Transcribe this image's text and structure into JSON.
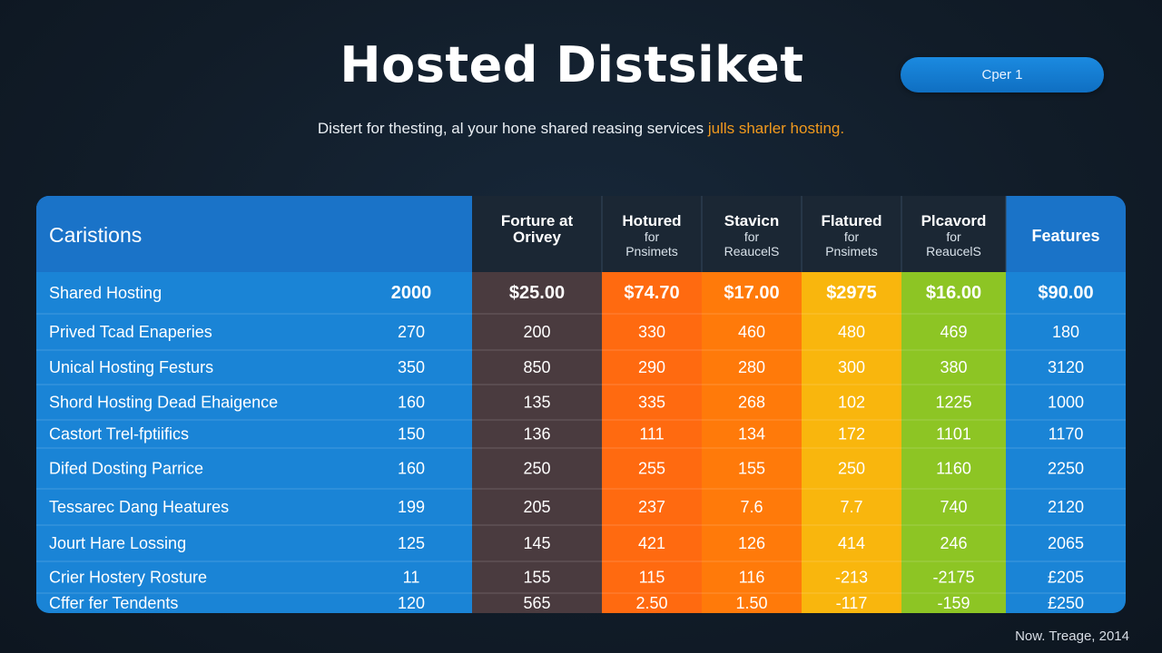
{
  "header": {
    "title": "Hosted Distsiket",
    "pill_label": "Cper 1",
    "subtitle_main": "Distert for thesting, al your hone shared reasing services ",
    "subtitle_highlight": "julls sharler hosting."
  },
  "footer": {
    "text": "Now. Treage, 2014"
  },
  "chart_data": {
    "type": "table",
    "header_label": "Caristions",
    "columns": [
      {
        "title": "",
        "subtitle": "",
        "color": "#1a84d6"
      },
      {
        "title": "Forture at Orivey",
        "subtitle": "",
        "color": "#4a3b3f"
      },
      {
        "title": "Hotured",
        "subtitle": "for Pnsimets",
        "color": "#ff6a10"
      },
      {
        "title": "Stavicn",
        "subtitle": "for ReaucelS",
        "color": "#ff7a0a"
      },
      {
        "title": "Flatured",
        "subtitle": "for Pnsimets",
        "color": "#f9b60d"
      },
      {
        "title": "Plcavord",
        "subtitle": "for ReaucelS",
        "color": "#8dc524"
      },
      {
        "title": "Features",
        "subtitle": "",
        "color": "#1a84d6"
      }
    ],
    "rows": [
      {
        "label": "Shared Hosting",
        "values": [
          "2000",
          "$25.00",
          "$74.70",
          "$17.00",
          "$2975",
          "$16.00",
          "$90.00"
        ]
      },
      {
        "label": "Prived Tcad Enaperies",
        "values": [
          "270",
          "200",
          "330",
          "460",
          "480",
          "469",
          "180"
        ]
      },
      {
        "label": "Unical Hosting Festurs",
        "values": [
          "350",
          "850",
          "290",
          "280",
          "300",
          "380",
          "3120"
        ]
      },
      {
        "label": "Shord Hosting Dead Ehaigence",
        "values": [
          "160",
          "135",
          "335",
          "268",
          "102",
          "1225",
          "1000"
        ]
      },
      {
        "label": "Castort Trel-fptiifics",
        "values": [
          "150",
          "136",
          "111",
          "134",
          "172",
          "1101",
          "1170"
        ]
      },
      {
        "label": "Difed Dosting Parrice",
        "values": [
          "160",
          "250",
          "255",
          "155",
          "250",
          "1160",
          "2250"
        ]
      },
      {
        "label": "Tessarec Dang Heatures",
        "values": [
          "199",
          "205",
          "237",
          "7.6",
          "7.7",
          "740",
          "2120"
        ]
      },
      {
        "label": "Jourt Hare Lossing",
        "values": [
          "125",
          "145",
          "421",
          "126",
          "414",
          "246",
          "2065"
        ]
      },
      {
        "label": "Crier Hostery Rosture",
        "values": [
          "11",
          "155",
          "115",
          "116",
          "-213",
          "-2175",
          "£205"
        ]
      },
      {
        "label": "Cffer fer Tendents",
        "values": [
          "120",
          "565",
          "2.50",
          "1.50",
          "-117",
          "-159",
          "£250"
        ]
      }
    ]
  }
}
